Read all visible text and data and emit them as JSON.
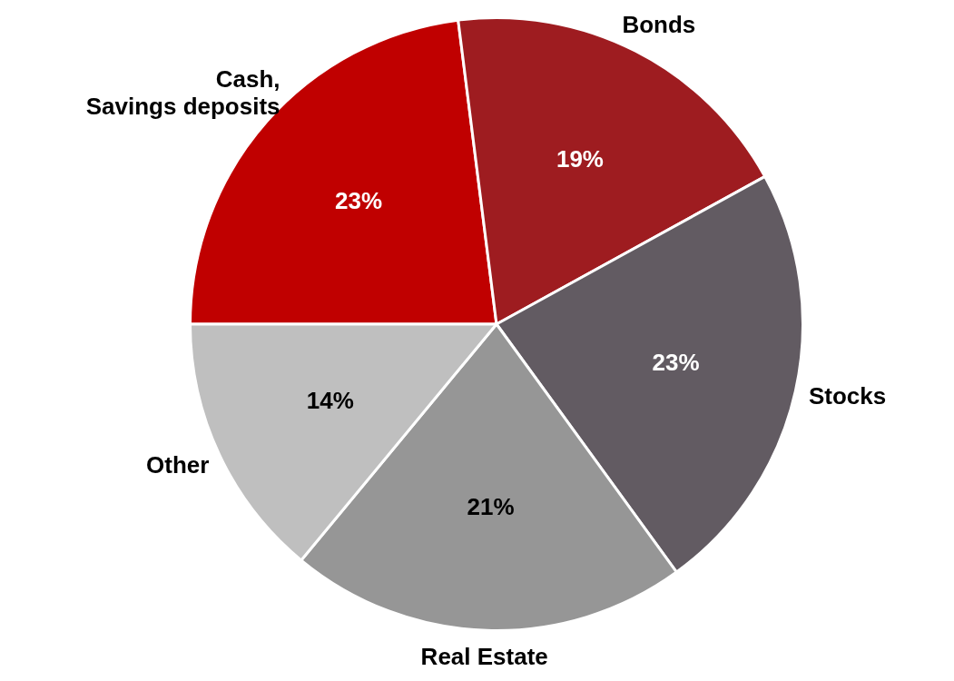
{
  "chart_data": {
    "type": "pie",
    "categories": [
      "Cash, Savings deposits",
      "Bonds",
      "Stocks",
      "Real Estate",
      "Other"
    ],
    "values": [
      23,
      19,
      23,
      21,
      14
    ],
    "colors": [
      "#c00000",
      "#9e1c20",
      "#625b62",
      "#969696",
      "#bfbfbf"
    ],
    "value_labels": [
      "23%",
      "19%",
      "23%",
      "21%",
      "14%"
    ],
    "legend": false
  }
}
